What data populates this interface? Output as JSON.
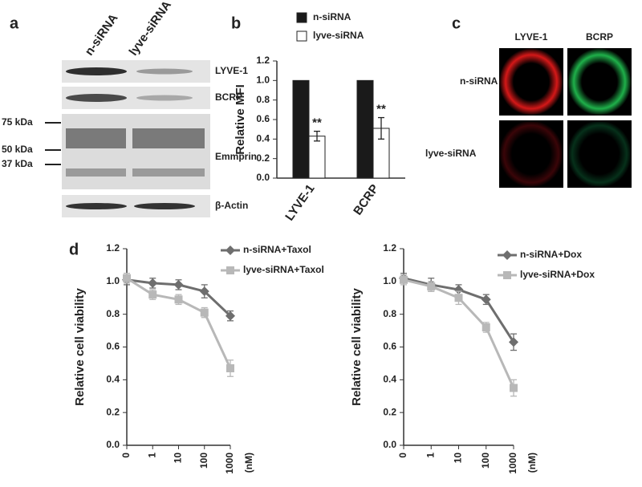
{
  "blot": {
    "panel": "a",
    "columns": [
      "n-siRNA",
      "lyve-siRNA"
    ],
    "bands": [
      "LYVE-1",
      "BCRP",
      "Emmprin",
      "β-Actin"
    ],
    "markers": [
      "75 kDa",
      "50 kDa",
      "37 kDa"
    ]
  },
  "images": {
    "panel": "c",
    "columns": [
      "LYVE-1",
      "BCRP"
    ],
    "rows": [
      "n-siRNA",
      "lyve-siRNA"
    ]
  },
  "chart_data": [
    {
      "type": "bar",
      "panel": "b",
      "ylabel": "Relative MFI",
      "categories": [
        "LYVE-1",
        "BCRP"
      ],
      "series": [
        {
          "name": "n-siRNA",
          "color": "#1a1a1a",
          "values": [
            1,
            1
          ]
        },
        {
          "name": "lyve-siRNA",
          "color": "#ffffff",
          "values": [
            0.43,
            0.51
          ],
          "errors": [
            0.05,
            0.11
          ]
        }
      ],
      "annotations": [
        "**",
        "**"
      ],
      "ylim": [
        0,
        1.2
      ],
      "yticks": [
        {
          "value": 0,
          "label": "0.0"
        },
        0.2,
        0.4,
        0.6,
        0.8,
        {
          "value": 1,
          "label": "1.0"
        },
        1.2
      ]
    },
    {
      "type": "line",
      "panel": "d",
      "ylabel": "Relative cell viability",
      "xlabel": "(nM)",
      "categories": [
        "0",
        "1",
        "10",
        "100",
        "1000"
      ],
      "series": [
        {
          "name": "n-siRNA+Taxol",
          "color": "#6e6e6e",
          "marker": "diamond",
          "values": [
            1.01,
            0.99,
            0.98,
            0.94,
            0.79
          ],
          "errors": [
            0.03,
            0.03,
            0.03,
            0.04,
            0.03
          ]
        },
        {
          "name": "lyve-siRNA+Taxol",
          "color": "#b8b8b8",
          "marker": "square",
          "values": [
            1.02,
            0.92,
            0.89,
            0.81,
            0.47
          ],
          "errors": [
            0.03,
            0.03,
            0.03,
            0.03,
            0.05
          ]
        }
      ],
      "ylim": [
        0,
        1.2
      ],
      "yticks": [
        {
          "value": 0,
          "label": "0.0"
        },
        0.2,
        0.4,
        0.6,
        0.8,
        {
          "value": 1,
          "label": "1.0"
        },
        1.2
      ]
    },
    {
      "type": "line",
      "ylabel": "Relative cell viability",
      "xlabel": "(nM)",
      "categories": [
        "0",
        "1",
        "10",
        "100",
        "1000"
      ],
      "series": [
        {
          "name": "n-siRNA+Dox",
          "color": "#6e6e6e",
          "marker": "diamond",
          "values": [
            1.02,
            0.98,
            0.95,
            0.89,
            0.63
          ],
          "errors": [
            0.03,
            0.04,
            0.03,
            0.03,
            0.05
          ]
        },
        {
          "name": "lyve-siRNA+Dox",
          "color": "#b8b8b8",
          "marker": "square",
          "values": [
            1.01,
            0.97,
            0.9,
            0.72,
            0.35
          ],
          "errors": [
            0.03,
            0.03,
            0.04,
            0.03,
            0.05
          ]
        }
      ],
      "ylim": [
        0,
        1.2
      ],
      "yticks": [
        {
          "value": 0,
          "label": "0.0"
        },
        0.2,
        0.4,
        0.6,
        0.8,
        {
          "value": 1,
          "label": "1.0"
        },
        1.2
      ]
    }
  ]
}
